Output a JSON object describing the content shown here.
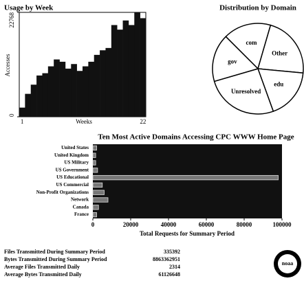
{
  "chart_data": [
    {
      "type": "bar",
      "title": "Usage by Week",
      "ylabel": "Accesses",
      "xlabel": "Weeks",
      "categories": [
        "1",
        null,
        null,
        null,
        null,
        null,
        null,
        null,
        null,
        null,
        null,
        null,
        null,
        null,
        null,
        null,
        null,
        null,
        null,
        null,
        null,
        "22"
      ],
      "values": [
        2000,
        5000,
        7000,
        9000,
        9500,
        11000,
        12500,
        12000,
        10500,
        11500,
        10000,
        11000,
        12000,
        13500,
        14500,
        15000,
        20000,
        19000,
        21000,
        20000,
        22768,
        21500
      ],
      "color": "#111111",
      "ylim": [
        0,
        22768
      ],
      "yticks": [
        0,
        22768
      ]
    },
    {
      "type": "pie",
      "title": "Distribution by Domain",
      "categories": [
        "com",
        "Other",
        "edu",
        "Unresolved",
        "gov"
      ],
      "values": [
        17,
        22,
        18,
        26,
        17
      ],
      "color": "#ffffff"
    },
    {
      "type": "hbar",
      "title": "Ten Most Active Domains Accessing CPC WWW Home Page",
      "xlabel": "Total Requests for Summary Period",
      "categories": [
        "United States",
        "United Kingdom",
        "US Military",
        "US Government",
        "US Educational",
        "US Commercial",
        "Non-Profit Organizations",
        "Network",
        "Canada",
        "France"
      ],
      "values": [
        2000,
        1500,
        1500,
        2500,
        98000,
        5000,
        6000,
        8000,
        3000,
        2000
      ],
      "color": "#777777",
      "xlim": [
        0,
        100000
      ],
      "xticks": [
        0,
        20000,
        40000,
        60000,
        80000,
        100000
      ]
    }
  ],
  "stats": [
    {
      "label": "Files Transmitted During Summary Period",
      "value": 335392
    },
    {
      "label": "Bytes Transmitted During Summary Period",
      "value": 8863362951
    },
    {
      "label": "Average Files Transmitted Daily",
      "value": 2314
    },
    {
      "label": "Average Bytes Transmitted Daily",
      "value": 61126648
    }
  ],
  "logo": {
    "text": "noaa"
  }
}
